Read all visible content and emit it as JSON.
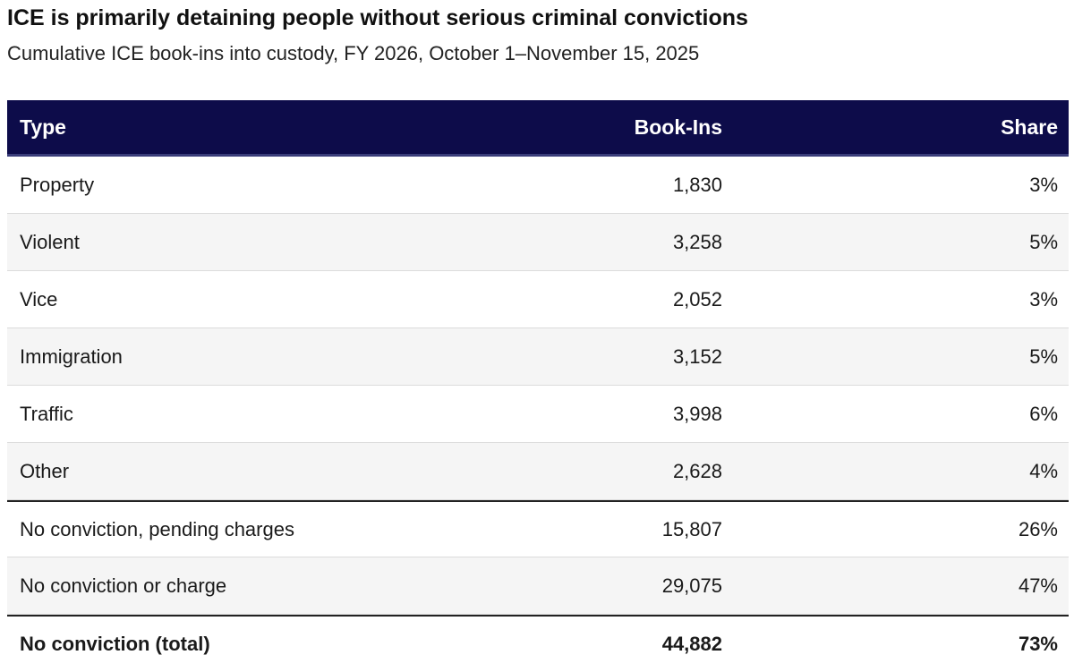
{
  "header": {
    "title": "ICE is primarily detaining people without serious criminal convictions",
    "subtitle": "Cumulative ICE book-ins into custody, FY 2026, October 1–November 15, 2025"
  },
  "colors": {
    "header_bg": "#0d0c4a",
    "header_text": "#ffffff",
    "row_alt": "#f5f5f5"
  },
  "chart_data": {
    "type": "table",
    "title": "ICE is primarily detaining people without serious criminal convictions",
    "subtitle": "Cumulative ICE book-ins into custody, FY 2026, October 1–November 15, 2025",
    "columns": [
      "Type",
      "Book-Ins",
      "Share"
    ],
    "rows": [
      {
        "type": "Property",
        "book_ins": "1,830",
        "share": "3%"
      },
      {
        "type": "Violent",
        "book_ins": "3,258",
        "share": "5%"
      },
      {
        "type": "Vice",
        "book_ins": "2,052",
        "share": "3%"
      },
      {
        "type": "Immigration",
        "book_ins": "3,152",
        "share": "5%"
      },
      {
        "type": "Traffic",
        "book_ins": "3,998",
        "share": "6%"
      },
      {
        "type": "Other",
        "book_ins": "2,628",
        "share": "4%"
      },
      {
        "type": "No conviction, pending charges",
        "book_ins": "15,807",
        "share": "26%"
      },
      {
        "type": "No conviction or charge",
        "book_ins": "29,075",
        "share": "47%"
      },
      {
        "type": "No conviction (total)",
        "book_ins": "44,882",
        "share": "73%"
      }
    ]
  }
}
